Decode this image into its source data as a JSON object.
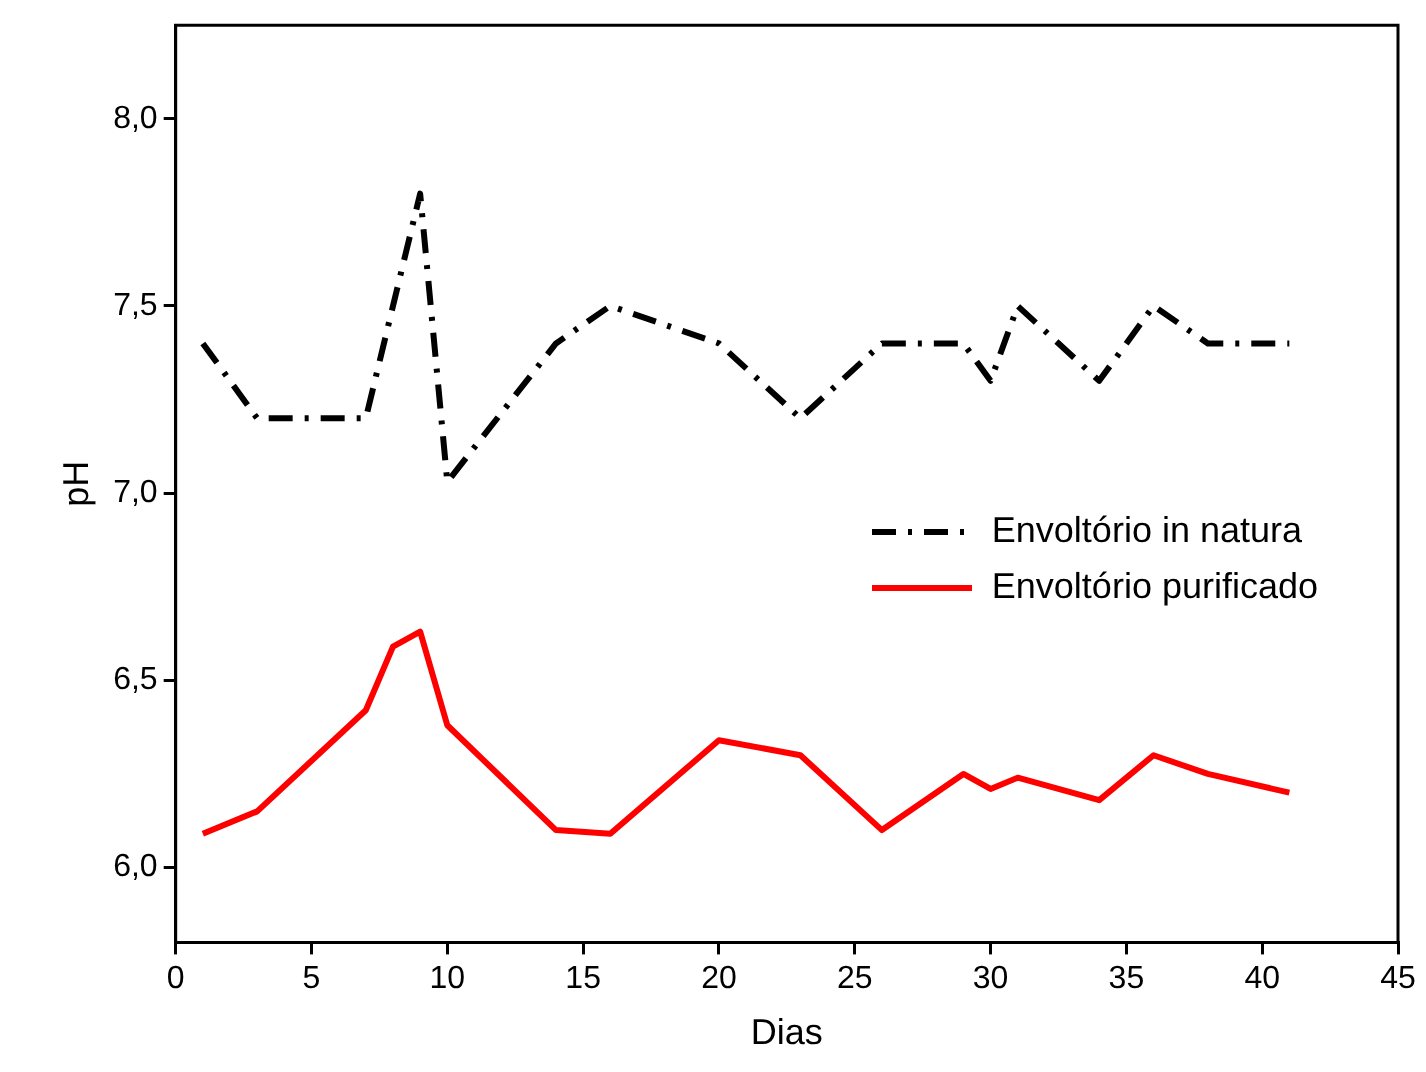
{
  "chart_data": {
    "type": "line",
    "xlabel": "Dias",
    "ylabel": "pH",
    "xlim": [
      0,
      45
    ],
    "xticks": [
      0,
      5,
      10,
      15,
      20,
      25,
      30,
      35,
      40,
      45
    ],
    "ylim": [
      5.8,
      8.25
    ],
    "yticks": [
      {
        "value": 6,
        "label": "6,0"
      },
      {
        "value": 6.5,
        "label": "6,5"
      },
      {
        "value": 7,
        "label": "7,0"
      },
      {
        "value": 7.5,
        "label": "7,5"
      },
      {
        "value": 8,
        "label": "8,0"
      }
    ],
    "grid": false,
    "legend": "right",
    "marker": "none",
    "series": [
      {
        "name": "Envoltório in natura",
        "color": "#000000",
        "line_style": "dashdot",
        "x": [
          1,
          3,
          5,
          7,
          9,
          10,
          14,
          16,
          20,
          23,
          26,
          29,
          30,
          31,
          34,
          36,
          38,
          41
        ],
        "values": [
          7.4,
          7.2,
          7.2,
          7.2,
          7.8,
          7.03,
          7.4,
          7.5,
          7.4,
          7.2,
          7.4,
          7.4,
          7.3,
          7.5,
          7.3,
          7.5,
          7.4,
          7.4
        ]
      },
      {
        "name": "Envoltório purificado",
        "color": "#ff0000",
        "line_style": "solid",
        "x": [
          1,
          3,
          7,
          8,
          9,
          10,
          14,
          16,
          20,
          23,
          26,
          29,
          30,
          31,
          34,
          36,
          38,
          41
        ],
        "values": [
          6.09,
          6.15,
          6.42,
          6.59,
          6.63,
          6.38,
          6.1,
          6.09,
          6.34,
          6.3,
          6.1,
          6.25,
          6.21,
          6.24,
          6.18,
          6.3,
          6.25,
          6.2
        ]
      }
    ]
  }
}
